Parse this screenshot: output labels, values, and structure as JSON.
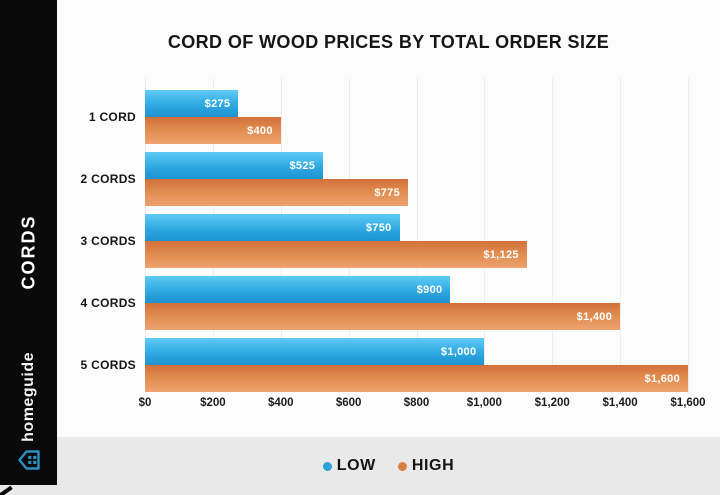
{
  "sidebar": {
    "category_label": "CORDS",
    "brand_name": "homeguide"
  },
  "chart_data": {
    "type": "bar",
    "orientation": "horizontal",
    "title": "CORD OF WOOD PRICES BY TOTAL ORDER SIZE",
    "categories": [
      "1 CORD",
      "2 CORDS",
      "3 CORDS",
      "4 CORDS",
      "5 CORDS"
    ],
    "series": [
      {
        "name": "LOW",
        "color": "#2ba3d6",
        "values": [
          275,
          525,
          750,
          900,
          1000
        ],
        "labels": [
          "$275",
          "$525",
          "$750",
          "$900",
          "$1,000"
        ]
      },
      {
        "name": "HIGH",
        "color": "#d8803f",
        "values": [
          400,
          775,
          1125,
          1400,
          1600
        ],
        "labels": [
          "$400",
          "$775",
          "$1,125",
          "$1,400",
          "$1,600"
        ]
      }
    ],
    "xlim": [
      0,
      1600
    ],
    "x_tick_values": [
      0,
      200,
      400,
      600,
      800,
      1000,
      1200,
      1400,
      1600
    ],
    "x_ticks": [
      "$0",
      "$200",
      "$400",
      "$600",
      "$800",
      "$1,000",
      "$1,200",
      "$1,400",
      "$1,600"
    ],
    "grid": true,
    "legend_position": "bottom"
  },
  "legend": {
    "items": [
      {
        "label": "LOW",
        "color": "#2ba3d6"
      },
      {
        "label": "HIGH",
        "color": "#d8803f"
      }
    ]
  },
  "colors": {
    "background": "#fcfcfc",
    "legend_band": "#e9e9e9",
    "sidebar_bg": "#0a0a0a",
    "low_gradient_top": "#5ecbf4",
    "low_gradient_bottom": "#1d92d2",
    "high_gradient_top": "#d2703a",
    "high_gradient_bottom": "#eda26f",
    "logo_blue": "#2b8fc4",
    "title_text": "#161616"
  }
}
